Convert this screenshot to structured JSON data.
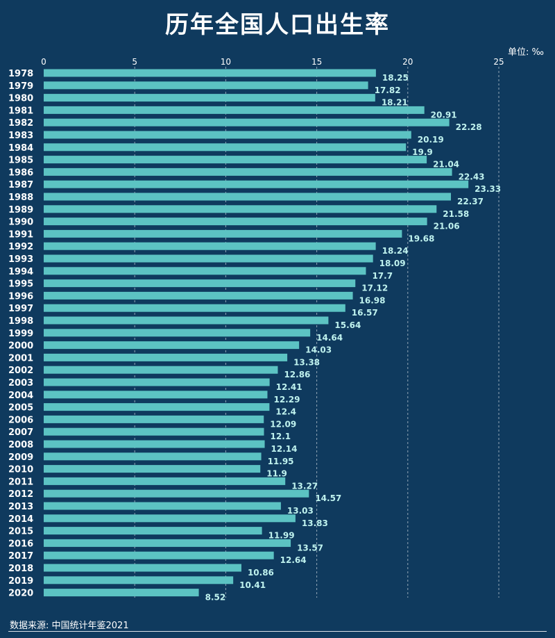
{
  "title": "历年全国人口出生率",
  "unit_label": "单位: ‰",
  "source": "数据来源: 中国统计年鉴2021",
  "colors": {
    "background": "#0f3a5e",
    "bar": "#5cc3c3",
    "value_label": "#bff2ee",
    "grid": "#ffffff"
  },
  "chart_data": {
    "type": "bar",
    "orientation": "horizontal",
    "title": "历年全国人口出生率",
    "xlabel": "",
    "ylabel": "",
    "unit": "‰",
    "xlim": [
      0,
      25
    ],
    "xticks": [
      0,
      5,
      10,
      15,
      20,
      25
    ],
    "grid": "vertical dashed",
    "categories": [
      "1978",
      "1979",
      "1980",
      "1981",
      "1982",
      "1983",
      "1984",
      "1985",
      "1986",
      "1987",
      "1988",
      "1989",
      "1990",
      "1991",
      "1992",
      "1993",
      "1994",
      "1995",
      "1996",
      "1997",
      "1998",
      "1999",
      "2000",
      "2001",
      "2002",
      "2003",
      "2004",
      "2005",
      "2006",
      "2007",
      "2008",
      "2009",
      "2010",
      "2011",
      "2012",
      "2013",
      "2014",
      "2015",
      "2016",
      "2017",
      "2018",
      "2019",
      "2020"
    ],
    "values": [
      18.25,
      17.82,
      18.21,
      20.91,
      22.28,
      20.19,
      19.9,
      21.04,
      22.43,
      23.33,
      22.37,
      21.58,
      21.06,
      19.68,
      18.24,
      18.09,
      17.7,
      17.12,
      16.98,
      16.57,
      15.64,
      14.64,
      14.03,
      13.38,
      12.86,
      12.41,
      12.29,
      12.4,
      12.09,
      12.1,
      12.14,
      11.95,
      11.9,
      13.27,
      14.57,
      13.03,
      13.83,
      11.99,
      13.57,
      12.64,
      10.86,
      10.41,
      8.52
    ]
  }
}
